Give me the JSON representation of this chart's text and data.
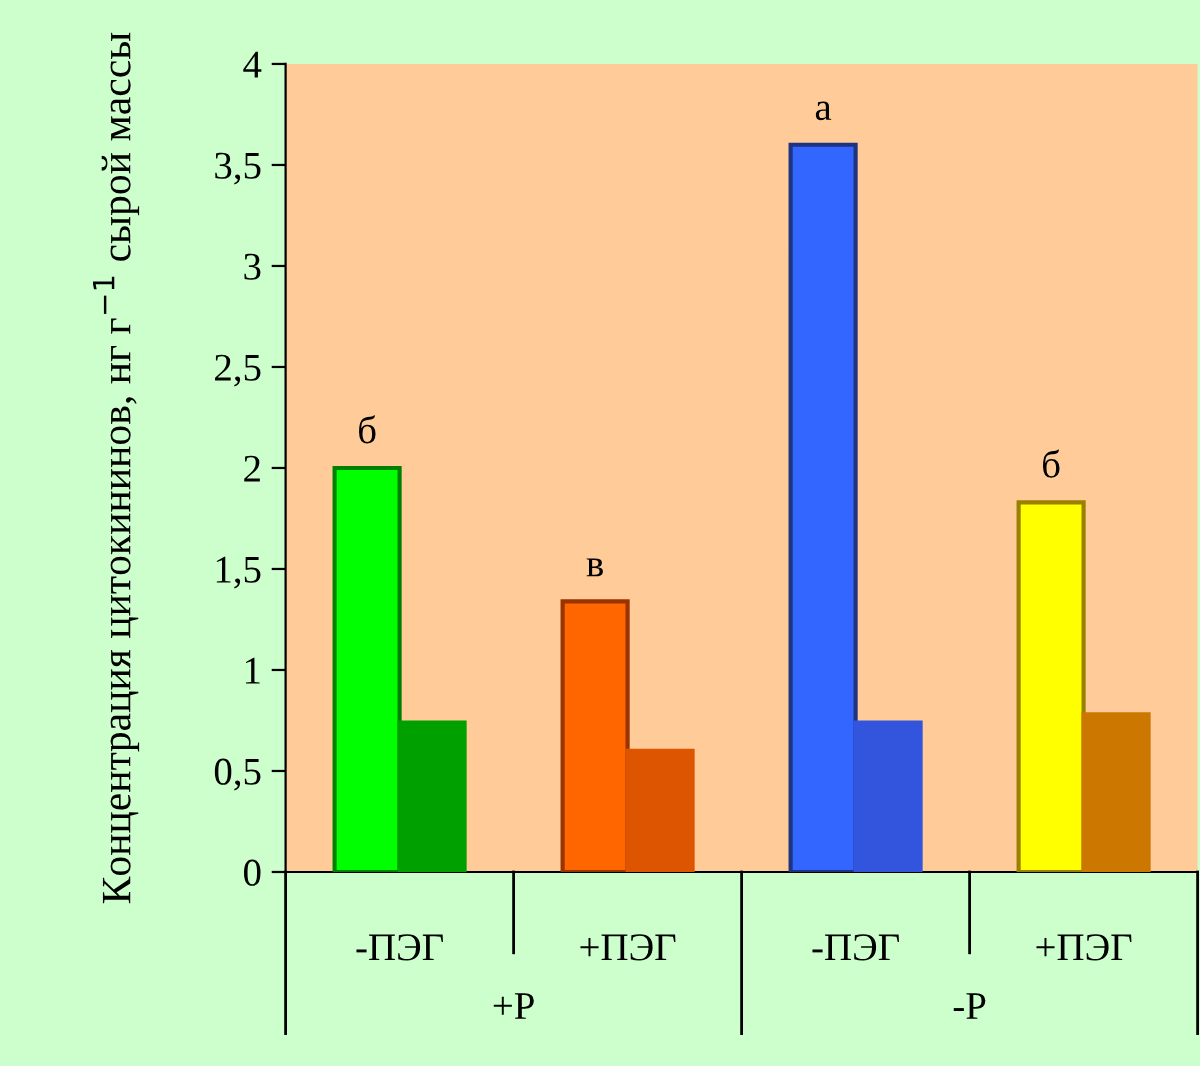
{
  "chart_data": {
    "type": "bar",
    "ylabel": "Концентрация цитокининов, нг г$^{−1}$ сырой массы",
    "categories": [
      "-ПЭГ",
      "+ПЭГ",
      "-ПЭГ",
      "+ПЭГ"
    ],
    "series": [
      {
        "colors": [
          "#00ff00",
          "#ff6600",
          "#3366ff",
          "#ffff00"
        ],
        "values": [
          2.0,
          1.34,
          3.6,
          1.83
        ]
      },
      {
        "colors": [
          "#00a000",
          "#dd5500",
          "#3355dd",
          "#cc7700"
        ],
        "values": [
          0.74,
          0.6,
          0.74,
          0.78
        ]
      }
    ],
    "annotations": [
      "б",
      "в",
      "а",
      "б",
      "+P",
      "-P"
    ],
    "ylim": [
      0,
      4
    ],
    "yticks": [
      0,
      {
        "value": 0.5,
        "label": "0,5"
      },
      1,
      {
        "value": 1.5,
        "label": "1,5"
      },
      2,
      {
        "value": 2.5,
        "label": "2,5"
      },
      3,
      {
        "value": 3.5,
        "label": "3,5"
      },
      4
    ],
    "grid": false,
    "legend": false
  }
}
